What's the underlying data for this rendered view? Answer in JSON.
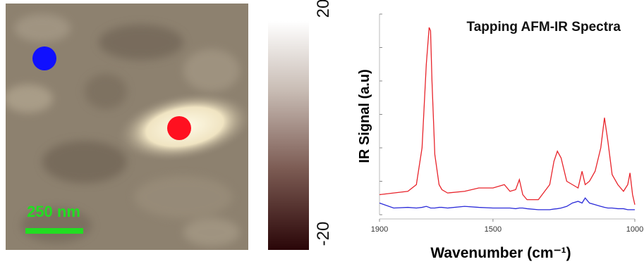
{
  "afm_image": {
    "scale_bar": "250 nm",
    "colorbar_lim": [
      -20,
      20
    ]
  },
  "chart_data": {
    "type": "line",
    "title": "Tapping AFM-IR Spectra",
    "x_label": "Wavenumber (cm⁻¹)",
    "y_label": "IR Signal (a.u)",
    "x": [
      1900,
      1850,
      1800,
      1770,
      1750,
      1735,
      1725,
      1720,
      1715,
      1705,
      1690,
      1680,
      1660,
      1600,
      1550,
      1500,
      1460,
      1440,
      1420,
      1407,
      1395,
      1380,
      1340,
      1300,
      1285,
      1273,
      1260,
      1240,
      1220,
      1200,
      1186,
      1175,
      1160,
      1140,
      1120,
      1107,
      1095,
      1080,
      1060,
      1040,
      1025,
      1017,
      1008,
      1000
    ],
    "series": [
      {
        "color": "#e8242b",
        "values": [
          0.6,
          0.65,
          0.7,
          0.9,
          2.0,
          4.5,
          5.6,
          5.5,
          4.0,
          1.8,
          0.9,
          0.75,
          0.65,
          0.7,
          0.8,
          0.8,
          0.9,
          0.7,
          0.75,
          1.05,
          0.6,
          0.45,
          0.45,
          0.9,
          1.6,
          1.9,
          1.7,
          1.0,
          0.9,
          0.8,
          1.3,
          0.9,
          1.0,
          1.3,
          2.0,
          2.9,
          2.2,
          1.2,
          0.9,
          0.7,
          0.9,
          1.25,
          0.6,
          0.3
        ]
      },
      {
        "color": "#2b2bd9",
        "values": [
          0.35,
          0.2,
          0.22,
          0.2,
          0.22,
          0.25,
          0.22,
          0.2,
          0.2,
          0.2,
          0.22,
          0.22,
          0.2,
          0.25,
          0.22,
          0.2,
          0.2,
          0.2,
          0.18,
          0.2,
          0.2,
          0.18,
          0.15,
          0.15,
          0.17,
          0.18,
          0.2,
          0.25,
          0.35,
          0.4,
          0.35,
          0.5,
          0.35,
          0.3,
          0.25,
          0.22,
          0.2,
          0.2,
          0.18,
          0.18,
          0.15,
          0.15,
          0.15,
          0.15
        ]
      }
    ],
    "xlim": [
      1900,
      1000
    ],
    "xticks": [
      1900,
      1500,
      1000
    ],
    "ylim": [
      0,
      6
    ],
    "yticks": [
      0,
      1,
      2,
      3,
      4,
      5,
      6
    ]
  }
}
